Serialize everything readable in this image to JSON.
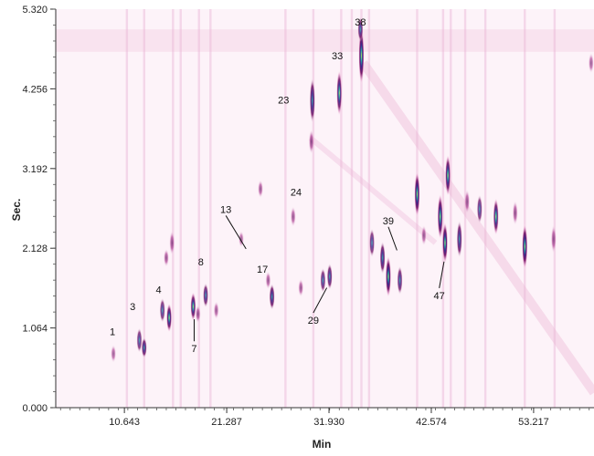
{
  "chart_data": {
    "type": "heatmap",
    "title": "",
    "xlabel": "Min",
    "ylabel": "Sec.",
    "xlim": [
      3.5,
      59.5
    ],
    "ylim": [
      0,
      5.32
    ],
    "x_ticks": [
      10.643,
      21.287,
      31.93,
      42.574,
      53.217
    ],
    "x_tick_labels": [
      "10.643",
      "21.287",
      "31.930",
      "42.574",
      "53.217"
    ],
    "y_ticks": [
      0,
      1.064,
      2.128,
      3.192,
      4.256,
      5.32
    ],
    "y_tick_labels": [
      "0.000",
      "1.064",
      "2.128",
      "3.192",
      "4.256",
      "5.320"
    ],
    "colors": {
      "background": "#fdf3f9",
      "low": "#e9a9d2",
      "mid": "#7b1a6a",
      "high": "#3a2a8f",
      "peak": "#2bb3a0",
      "core": "#f2e84a"
    },
    "peaks": [
      {
        "x": 9.5,
        "y": 0.72,
        "intensity": 0.25,
        "w": 0.25,
        "h": 0.22
      },
      {
        "x": 12.2,
        "y": 0.9,
        "intensity": 0.55,
        "w": 0.35,
        "h": 0.3
      },
      {
        "x": 12.7,
        "y": 0.8,
        "intensity": 0.75,
        "w": 0.3,
        "h": 0.25
      },
      {
        "x": 15.3,
        "y": 1.2,
        "intensity": 0.9,
        "w": 0.4,
        "h": 0.35
      },
      {
        "x": 14.6,
        "y": 1.3,
        "intensity": 0.55,
        "w": 0.3,
        "h": 0.3
      },
      {
        "x": 15.6,
        "y": 2.2,
        "intensity": 0.45,
        "w": 0.3,
        "h": 0.3
      },
      {
        "x": 15.0,
        "y": 2.0,
        "intensity": 0.4,
        "w": 0.25,
        "h": 0.22
      },
      {
        "x": 17.8,
        "y": 1.35,
        "intensity": 0.85,
        "w": 0.32,
        "h": 0.35
      },
      {
        "x": 18.3,
        "y": 1.25,
        "intensity": 0.45,
        "w": 0.25,
        "h": 0.22
      },
      {
        "x": 19.1,
        "y": 1.5,
        "intensity": 0.65,
        "w": 0.3,
        "h": 0.3
      },
      {
        "x": 20.2,
        "y": 1.3,
        "intensity": 0.3,
        "w": 0.25,
        "h": 0.22
      },
      {
        "x": 22.8,
        "y": 2.25,
        "intensity": 0.25,
        "w": 0.2,
        "h": 0.2
      },
      {
        "x": 24.8,
        "y": 2.92,
        "intensity": 0.35,
        "w": 0.2,
        "h": 0.22
      },
      {
        "x": 26.0,
        "y": 1.48,
        "intensity": 0.8,
        "w": 0.32,
        "h": 0.32
      },
      {
        "x": 25.6,
        "y": 1.7,
        "intensity": 0.35,
        "w": 0.22,
        "h": 0.22
      },
      {
        "x": 28.2,
        "y": 2.55,
        "intensity": 0.35,
        "w": 0.2,
        "h": 0.25
      },
      {
        "x": 29.0,
        "y": 1.6,
        "intensity": 0.35,
        "w": 0.2,
        "h": 0.22
      },
      {
        "x": 30.2,
        "y": 4.1,
        "intensity": 0.8,
        "w": 0.28,
        "h": 0.55
      },
      {
        "x": 30.1,
        "y": 3.55,
        "intensity": 0.5,
        "w": 0.25,
        "h": 0.3
      },
      {
        "x": 31.3,
        "y": 1.7,
        "intensity": 0.6,
        "w": 0.28,
        "h": 0.3
      },
      {
        "x": 32.0,
        "y": 1.75,
        "intensity": 0.7,
        "w": 0.3,
        "h": 0.32
      },
      {
        "x": 33.0,
        "y": 4.2,
        "intensity": 0.85,
        "w": 0.28,
        "h": 0.55
      },
      {
        "x": 35.3,
        "y": 4.7,
        "intensity": 1.0,
        "w": 0.38,
        "h": 0.7
      },
      {
        "x": 35.2,
        "y": 5.05,
        "intensity": 0.65,
        "w": 0.3,
        "h": 0.3
      },
      {
        "x": 36.4,
        "y": 2.2,
        "intensity": 0.55,
        "w": 0.3,
        "h": 0.35
      },
      {
        "x": 37.5,
        "y": 2.0,
        "intensity": 0.8,
        "w": 0.35,
        "h": 0.4
      },
      {
        "x": 38.1,
        "y": 1.75,
        "intensity": 1.0,
        "w": 0.4,
        "h": 0.5
      },
      {
        "x": 39.3,
        "y": 1.7,
        "intensity": 0.65,
        "w": 0.3,
        "h": 0.35
      },
      {
        "x": 41.1,
        "y": 2.85,
        "intensity": 1.0,
        "w": 0.4,
        "h": 0.55
      },
      {
        "x": 41.8,
        "y": 2.3,
        "intensity": 0.35,
        "w": 0.25,
        "h": 0.25
      },
      {
        "x": 43.5,
        "y": 2.55,
        "intensity": 0.95,
        "w": 0.4,
        "h": 0.55
      },
      {
        "x": 44.0,
        "y": 2.2,
        "intensity": 1.0,
        "w": 0.4,
        "h": 0.5
      },
      {
        "x": 44.3,
        "y": 3.1,
        "intensity": 0.9,
        "w": 0.35,
        "h": 0.5
      },
      {
        "x": 45.5,
        "y": 2.25,
        "intensity": 0.75,
        "w": 0.32,
        "h": 0.45
      },
      {
        "x": 46.3,
        "y": 2.75,
        "intensity": 0.45,
        "w": 0.25,
        "h": 0.3
      },
      {
        "x": 47.6,
        "y": 2.65,
        "intensity": 0.55,
        "w": 0.3,
        "h": 0.35
      },
      {
        "x": 49.3,
        "y": 2.55,
        "intensity": 0.85,
        "w": 0.35,
        "h": 0.45
      },
      {
        "x": 51.3,
        "y": 2.6,
        "intensity": 0.45,
        "w": 0.25,
        "h": 0.3
      },
      {
        "x": 52.3,
        "y": 2.15,
        "intensity": 1.0,
        "w": 0.4,
        "h": 0.55
      },
      {
        "x": 55.3,
        "y": 2.25,
        "intensity": 0.45,
        "w": 0.25,
        "h": 0.35
      },
      {
        "x": 59.2,
        "y": 4.6,
        "intensity": 0.25,
        "w": 0.2,
        "h": 0.25
      }
    ],
    "annotations": [
      {
        "label": "1",
        "x": 9.4,
        "y": 0.97
      },
      {
        "label": "3",
        "x": 11.5,
        "y": 1.3
      },
      {
        "label": "4",
        "x": 14.2,
        "y": 1.53
      },
      {
        "label": "8",
        "x": 18.6,
        "y": 1.9
      },
      {
        "label": "7",
        "x": 17.9,
        "y": 0.74,
        "to_x": 17.9,
        "to_y": 1.18
      },
      {
        "label": "13",
        "x": 21.2,
        "y": 2.6,
        "to_x": 23.3,
        "to_y": 2.12
      },
      {
        "label": "17",
        "x": 25.0,
        "y": 1.8
      },
      {
        "label": "23",
        "x": 27.2,
        "y": 4.06
      },
      {
        "label": "24",
        "x": 28.5,
        "y": 2.83
      },
      {
        "label": "29",
        "x": 30.3,
        "y": 1.12,
        "to_x": 31.7,
        "to_y": 1.6
      },
      {
        "label": "33",
        "x": 32.8,
        "y": 4.65
      },
      {
        "label": "38",
        "x": 35.2,
        "y": 5.1
      },
      {
        "label": "39",
        "x": 38.1,
        "y": 2.45,
        "to_x": 39.0,
        "to_y": 2.1
      },
      {
        "label": "47",
        "x": 43.4,
        "y": 1.45,
        "to_x": 43.9,
        "to_y": 1.95
      }
    ],
    "vertical_streaks": [
      10.9,
      12.7,
      15.7,
      16.5,
      18.4,
      19.6,
      27.4,
      30.3,
      33.2,
      34.3,
      35.3,
      36.1,
      41.1,
      43.8,
      44.6,
      46.1,
      48.2,
      52.3,
      55.4
    ],
    "grid": false,
    "legend": "none"
  }
}
